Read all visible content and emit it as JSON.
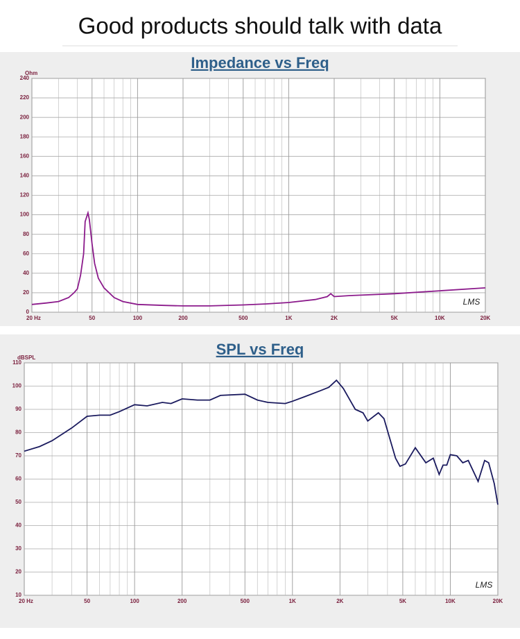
{
  "header": {
    "title": "Good products should talk with data"
  },
  "chart_data": [
    {
      "type": "line",
      "title": "Impedance vs Freq",
      "y_label": "Ohm",
      "annotation": "LMS",
      "xscale": "log",
      "grid": true,
      "color": "#8b1a8b",
      "x": [
        20,
        25,
        30,
        35,
        38,
        40,
        42,
        44,
        45,
        47,
        48,
        50,
        52,
        55,
        60,
        70,
        80,
        100,
        150,
        200,
        300,
        500,
        700,
        1000,
        1500,
        1800,
        1900,
        2000,
        2500,
        3000,
        5000,
        10000,
        20000
      ],
      "values": [
        8,
        9.5,
        11,
        15,
        20,
        24,
        38,
        60,
        93,
        102,
        95,
        70,
        50,
        35,
        25,
        15,
        11,
        8,
        7,
        6.5,
        6.5,
        7.5,
        8.5,
        10,
        13,
        16,
        19,
        16,
        17,
        17.5,
        19,
        22,
        25
      ],
      "xlim": [
        20,
        20000
      ],
      "xticks": [
        {
          "value": 20,
          "label": "20 Hz"
        },
        50,
        100,
        200,
        500,
        {
          "value": 1000,
          "label": "1K"
        },
        {
          "value": 2000,
          "label": "2K"
        },
        {
          "value": 5000,
          "label": "5K"
        },
        {
          "value": 10000,
          "label": "10K"
        },
        {
          "value": 20000,
          "label": "20K"
        }
      ],
      "xminor": [
        30,
        40,
        60,
        70,
        80,
        90,
        300,
        400,
        600,
        700,
        800,
        900,
        3000,
        4000,
        6000,
        7000,
        8000,
        9000
      ],
      "ylim": [
        0,
        240
      ],
      "yticks": [
        0,
        20,
        40,
        60,
        80,
        100,
        120,
        140,
        160,
        180,
        200,
        220,
        240
      ]
    },
    {
      "type": "line",
      "title": "SPL vs Freq",
      "y_label": "dBSPL",
      "annotation": "LMS",
      "xscale": "log",
      "grid": true,
      "color": "#1a1a5e",
      "x": [
        20,
        25,
        30,
        40,
        50,
        60,
        70,
        80,
        100,
        120,
        150,
        170,
        200,
        250,
        300,
        350,
        500,
        600,
        700,
        900,
        1000,
        1200,
        1500,
        1700,
        1900,
        2100,
        2500,
        2800,
        3000,
        3500,
        3800,
        4500,
        4800,
        5200,
        6000,
        7000,
        7800,
        8500,
        9000,
        9500,
        10000,
        11000,
        12000,
        13000,
        15000,
        16500,
        17500,
        19000,
        20000
      ],
      "values": [
        72,
        74,
        76.5,
        82,
        87,
        87.5,
        87.5,
        89,
        92,
        91.5,
        93,
        92.5,
        94.5,
        94,
        94,
        96,
        96.5,
        94,
        93,
        92.5,
        93.5,
        95.5,
        98,
        99.5,
        102.5,
        99,
        90,
        88.5,
        85,
        88.5,
        86,
        69,
        65.5,
        66.5,
        73.5,
        67,
        69,
        62,
        66,
        66,
        70.5,
        70,
        67,
        68,
        59,
        68,
        67,
        58,
        49
      ],
      "xlim": [
        20,
        20000
      ],
      "xticks": [
        {
          "value": 20,
          "label": "20 Hz"
        },
        50,
        100,
        200,
        500,
        {
          "value": 1000,
          "label": "1K"
        },
        {
          "value": 2000,
          "label": "2K"
        },
        {
          "value": 5000,
          "label": "5K"
        },
        {
          "value": 10000,
          "label": "10K"
        },
        {
          "value": 20000,
          "label": "20K"
        }
      ],
      "xminor": [
        30,
        40,
        60,
        70,
        80,
        90,
        300,
        400,
        600,
        700,
        800,
        900,
        3000,
        4000,
        6000,
        7000,
        8000,
        9000
      ],
      "ylim": [
        10,
        110
      ],
      "yticks": [
        10,
        20,
        30,
        40,
        50,
        60,
        70,
        80,
        90,
        100,
        110
      ]
    }
  ]
}
